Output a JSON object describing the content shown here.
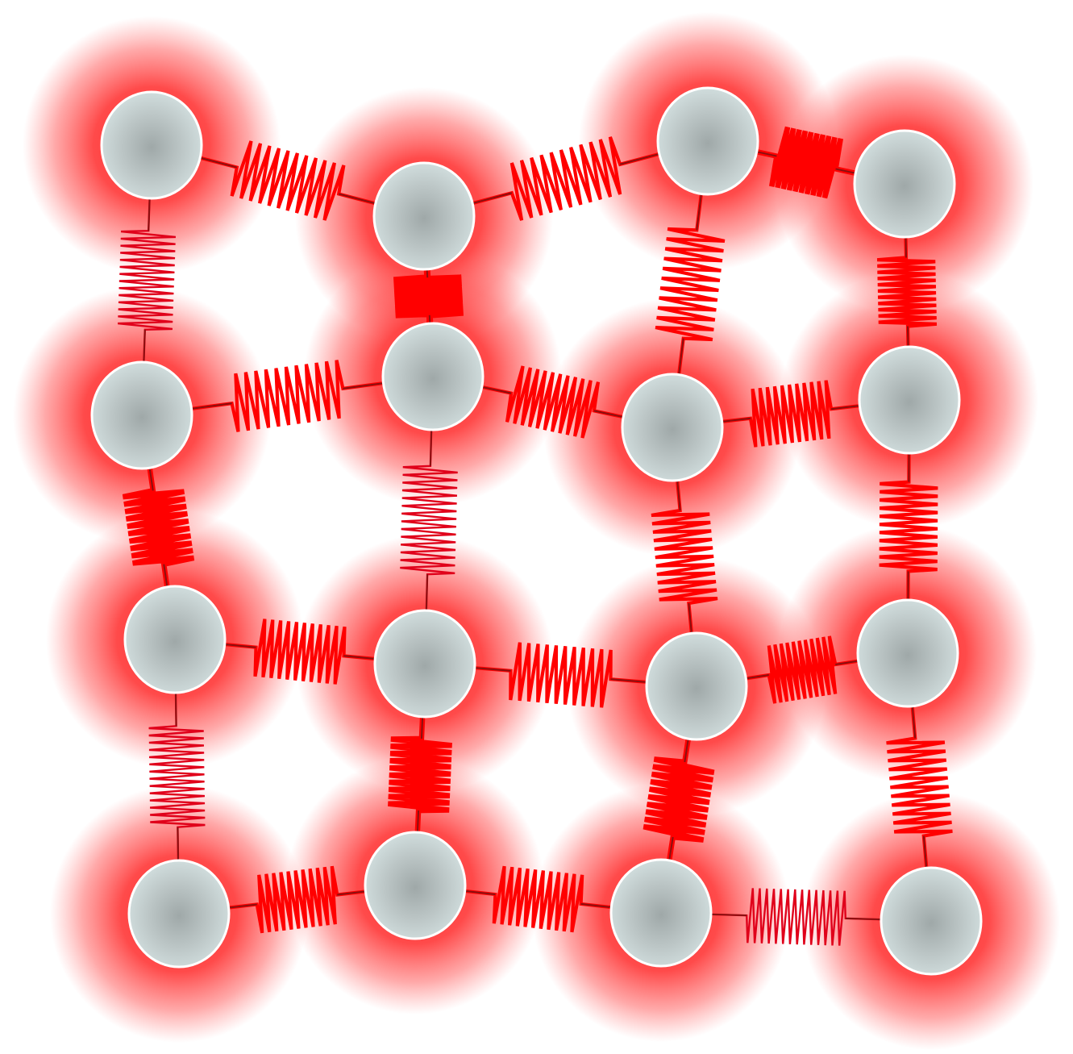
{
  "diagram": {
    "kind": "mass-spring lattice",
    "rows": 4,
    "columns": 4,
    "colors": {
      "background": "#ffffff",
      "glow": "#ff2a2a",
      "spring": "#ff0000",
      "spring_thin": "#e0001a",
      "mass_center": "#9fa8a8",
      "mass_edge": "#cfdcdc",
      "mass_outline": "#ffffff"
    },
    "masses": [
      {
        "id": "m-1-1",
        "row": 1,
        "col": 1
      },
      {
        "id": "m-1-2",
        "row": 1,
        "col": 2
      },
      {
        "id": "m-1-3",
        "row": 1,
        "col": 3
      },
      {
        "id": "m-1-4",
        "row": 1,
        "col": 4
      },
      {
        "id": "m-2-1",
        "row": 2,
        "col": 1
      },
      {
        "id": "m-2-2",
        "row": 2,
        "col": 2
      },
      {
        "id": "m-2-3",
        "row": 2,
        "col": 3
      },
      {
        "id": "m-2-4",
        "row": 2,
        "col": 4
      },
      {
        "id": "m-3-1",
        "row": 3,
        "col": 1
      },
      {
        "id": "m-3-2",
        "row": 3,
        "col": 2
      },
      {
        "id": "m-3-3",
        "row": 3,
        "col": 3
      },
      {
        "id": "m-3-4",
        "row": 3,
        "col": 4
      },
      {
        "id": "m-4-1",
        "row": 4,
        "col": 1
      },
      {
        "id": "m-4-2",
        "row": 4,
        "col": 2
      },
      {
        "id": "m-4-3",
        "row": 4,
        "col": 3
      },
      {
        "id": "m-4-4",
        "row": 4,
        "col": 4
      }
    ],
    "springs": [
      {
        "from": "m-1-1",
        "to": "m-1-2",
        "stiffness": "stiff"
      },
      {
        "from": "m-1-2",
        "to": "m-1-3",
        "stiffness": "stiff"
      },
      {
        "from": "m-1-3",
        "to": "m-1-4",
        "stiffness": "very-stiff"
      },
      {
        "from": "m-2-1",
        "to": "m-2-2",
        "stiffness": "stiff"
      },
      {
        "from": "m-2-2",
        "to": "m-2-3",
        "stiffness": "stiff"
      },
      {
        "from": "m-2-3",
        "to": "m-2-4",
        "stiffness": "stiff"
      },
      {
        "from": "m-3-1",
        "to": "m-3-2",
        "stiffness": "stiff"
      },
      {
        "from": "m-3-2",
        "to": "m-3-3",
        "stiffness": "stiff"
      },
      {
        "from": "m-3-3",
        "to": "m-3-4",
        "stiffness": "stiff"
      },
      {
        "from": "m-4-1",
        "to": "m-4-2",
        "stiffness": "stiff"
      },
      {
        "from": "m-4-2",
        "to": "m-4-3",
        "stiffness": "stiff"
      },
      {
        "from": "m-4-3",
        "to": "m-4-4",
        "stiffness": "soft"
      },
      {
        "from": "m-1-1",
        "to": "m-2-1",
        "stiffness": "soft"
      },
      {
        "from": "m-2-1",
        "to": "m-3-1",
        "stiffness": "very-stiff"
      },
      {
        "from": "m-3-1",
        "to": "m-4-1",
        "stiffness": "soft"
      },
      {
        "from": "m-1-2",
        "to": "m-2-2",
        "stiffness": "compressed"
      },
      {
        "from": "m-2-2",
        "to": "m-3-2",
        "stiffness": "soft"
      },
      {
        "from": "m-3-2",
        "to": "m-4-2",
        "stiffness": "very-stiff"
      },
      {
        "from": "m-1-3",
        "to": "m-2-3",
        "stiffness": "stiff"
      },
      {
        "from": "m-2-3",
        "to": "m-3-3",
        "stiffness": "stiff"
      },
      {
        "from": "m-3-3",
        "to": "m-4-3",
        "stiffness": "very-stiff"
      },
      {
        "from": "m-1-4",
        "to": "m-2-4",
        "stiffness": "stiff"
      },
      {
        "from": "m-2-4",
        "to": "m-3-4",
        "stiffness": "stiff"
      },
      {
        "from": "m-3-4",
        "to": "m-4-4",
        "stiffness": "stiff"
      }
    ]
  }
}
